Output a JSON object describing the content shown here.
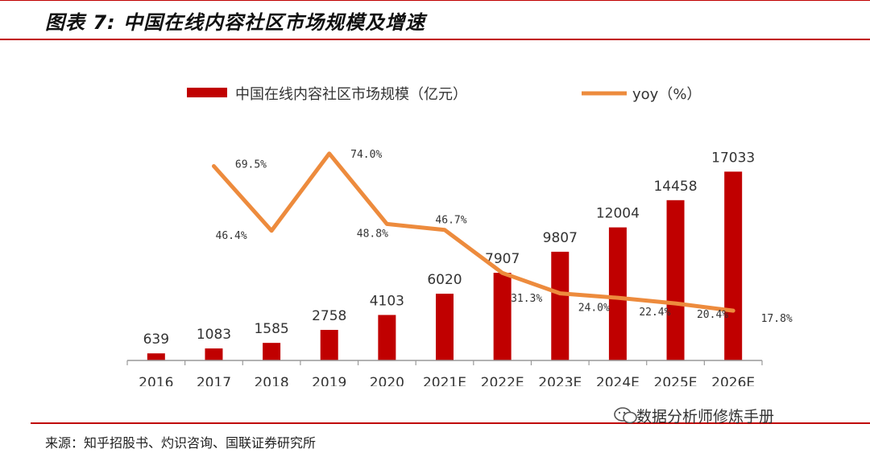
{
  "header": {
    "title": "图表 7:  中国在线内容社区市场规模及增速"
  },
  "footer": {
    "source": "来源：知乎招股书、灼识咨询、国联证券研究所",
    "watermark": "数据分析师修炼手册"
  },
  "colors": {
    "bar": "#c00000",
    "line": "#ed8b3d",
    "accent": "#c00000"
  },
  "chart_data": {
    "type": "bar",
    "title": "中国在线内容社区市场规模及增速",
    "categories": [
      "2016",
      "2017",
      "2018",
      "2019",
      "2020",
      "2021E",
      "2022E",
      "2023E",
      "2024E",
      "2025E",
      "2026E"
    ],
    "series": [
      {
        "name": "中国在线内容社区市场规模（亿元）",
        "type": "bar",
        "values": [
          639,
          1083,
          1585,
          2758,
          4103,
          6020,
          7907,
          9807,
          12004,
          14458,
          17033
        ],
        "labels": [
          "639",
          "1083",
          "1585",
          "2758",
          "4103",
          "6020",
          "7907",
          "9807",
          "12004",
          "14458",
          "17033"
        ]
      },
      {
        "name": "yoy（%）",
        "type": "line",
        "x": [
          "2017",
          "2018",
          "2019",
          "2020",
          "2021E",
          "2022E",
          "2023E",
          "2024E",
          "2025E",
          "2026E"
        ],
        "values": [
          69.5,
          46.4,
          74.0,
          48.8,
          46.7,
          31.3,
          24.0,
          22.4,
          20.4,
          17.8
        ],
        "labels": [
          "69.5%",
          "46.4%",
          "74.0%",
          "48.8%",
          "46.7%",
          "31.3%",
          "24.0%",
          "22.4%",
          "20.4%",
          "17.8%"
        ]
      }
    ],
    "ylim_bar": [
      0,
      18000
    ],
    "ylim_line": [
      0,
      80
    ],
    "legend": [
      "中国在线内容社区市场规模（亿元）",
      "yoy（%）"
    ],
    "legend_position": "top"
  }
}
